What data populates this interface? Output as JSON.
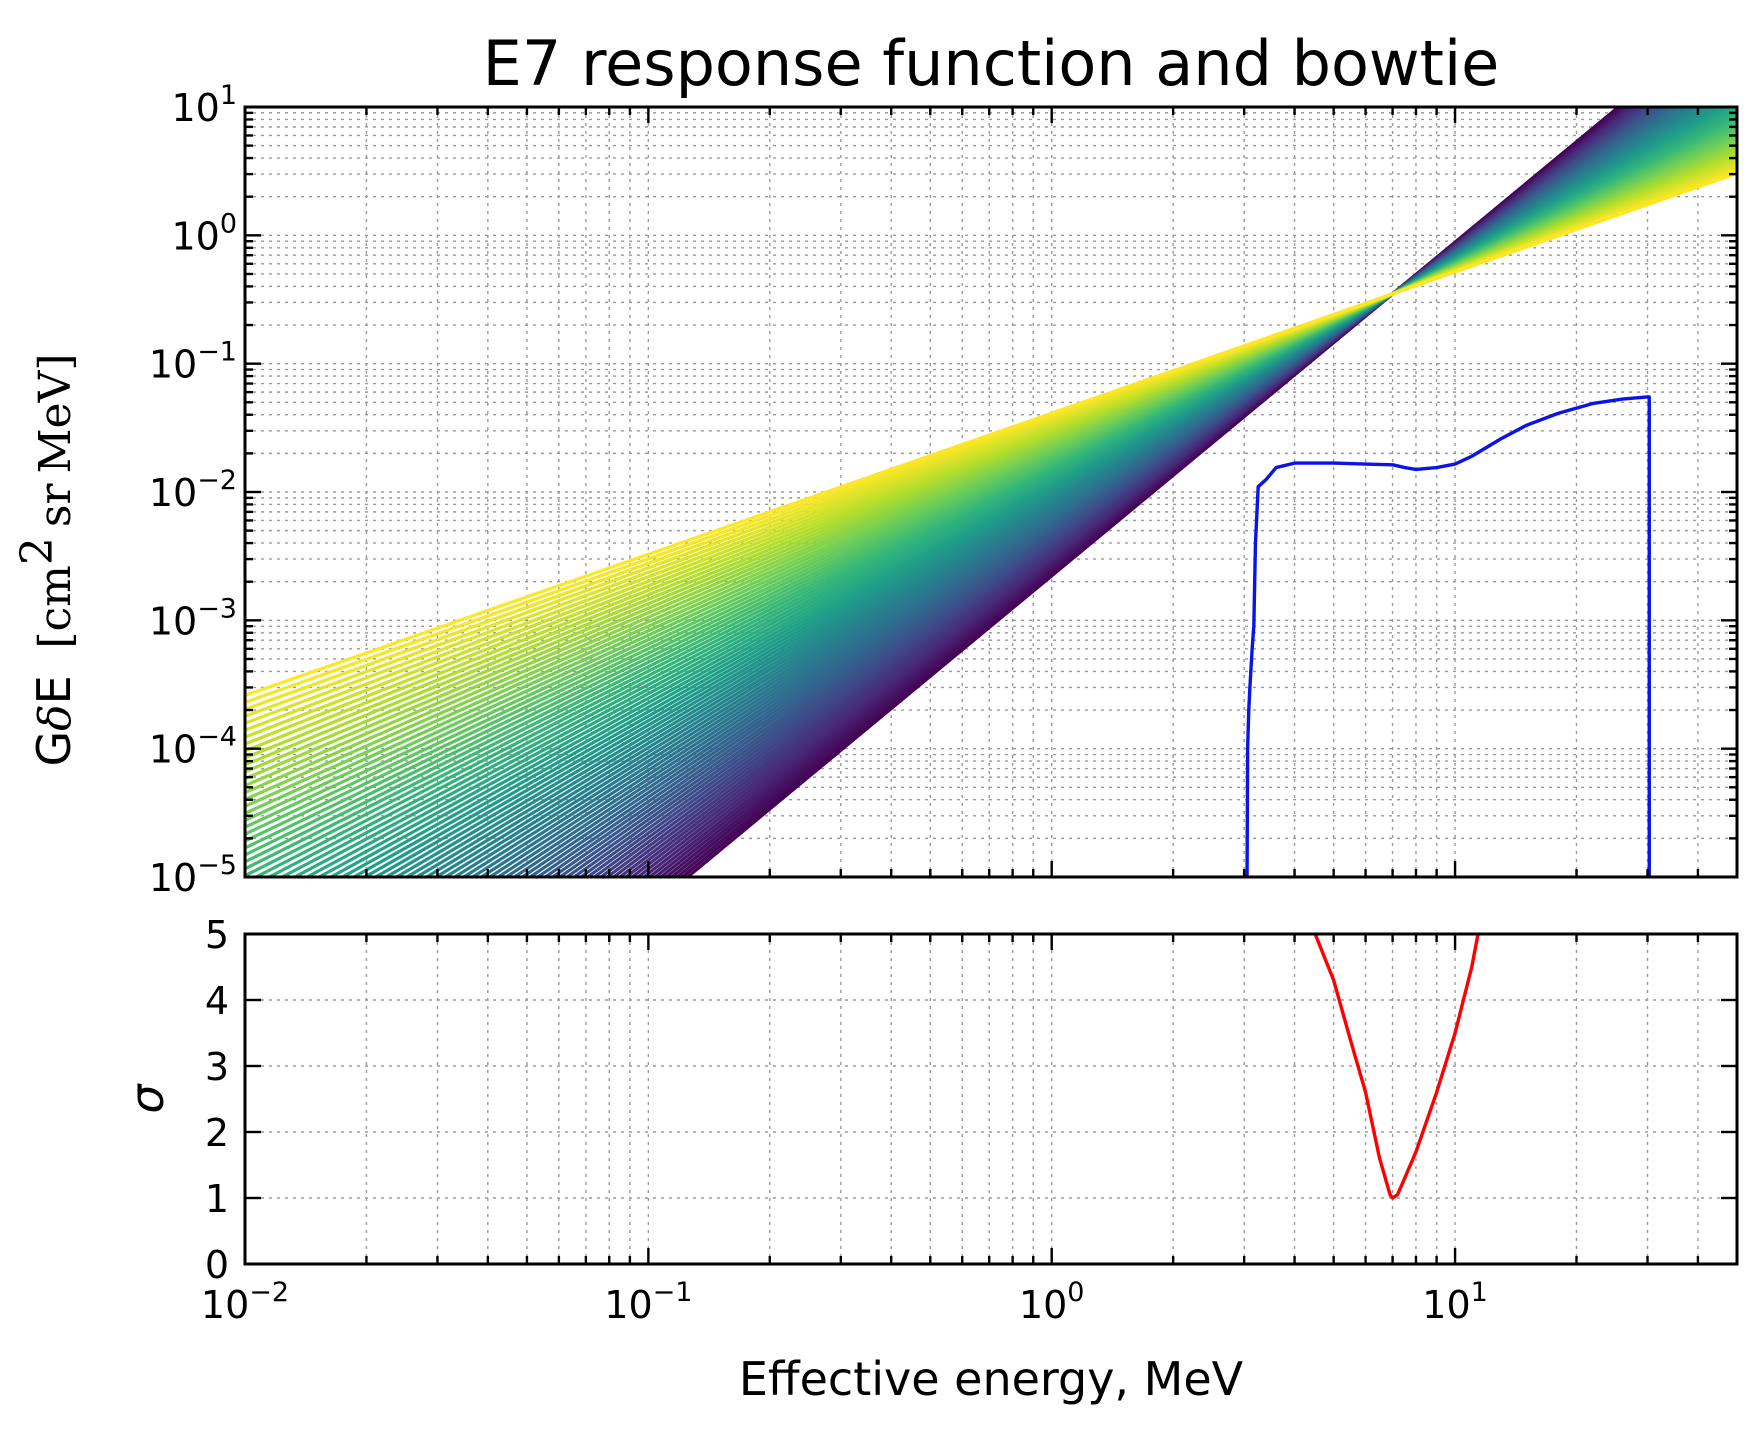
{
  "figure": {
    "title": "E7 response function and bowtie"
  },
  "chart_data": [
    {
      "type": "line",
      "panel": "top",
      "xscale": "log",
      "yscale": "log",
      "xlim": [
        0.01,
        50
      ],
      "ylim": [
        1e-05,
        10
      ],
      "grid": true,
      "ylabel": "GδE [cm² sr MeV]",
      "ylabel_parts": {
        "prefix": "G",
        "delta": "δ",
        "e": "E",
        "lb": "[",
        "unit1": "cm",
        "sup": "2",
        "unit2": "sr",
        "unit3": "MeV",
        "rb": "]"
      },
      "xticks": [
        {
          "base": "10",
          "exp": "−2",
          "value": 0.01
        },
        {
          "base": "10",
          "exp": "−1",
          "value": 0.1
        },
        {
          "base": "10",
          "exp": "0",
          "value": 1
        },
        {
          "base": "10",
          "exp": "1",
          "value": 10
        }
      ],
      "yticks": [
        {
          "base": "10",
          "exp": "1",
          "value": 10
        },
        {
          "base": "10",
          "exp": "0",
          "value": 1
        },
        {
          "base": "10",
          "exp": "−1",
          "value": 0.1
        },
        {
          "base": "10",
          "exp": "−2",
          "value": 0.01
        },
        {
          "base": "10",
          "exp": "−3",
          "value": 0.001
        },
        {
          "base": "10",
          "exp": "−4",
          "value": 0.0001
        },
        {
          "base": "10",
          "exp": "−5",
          "value": 1e-05
        }
      ],
      "bowtie": {
        "colormap": "viridis",
        "pivot_energy": 7.0,
        "pivot_value": 0.35,
        "slope_min": 1.1,
        "slope_max": 2.6,
        "line_count": 80
      },
      "series": [
        {
          "color": "#0a14e6",
          "points": [
            [
              3.05,
              1e-05
            ],
            [
              3.06,
              0.0001
            ],
            [
              3.08,
              0.0002
            ],
            [
              3.1,
              0.0003
            ],
            [
              3.14,
              0.0006
            ],
            [
              3.17,
              0.0009
            ],
            [
              3.2,
              0.004
            ],
            [
              3.25,
              0.011
            ],
            [
              3.4,
              0.0125
            ],
            [
              3.6,
              0.0155
            ],
            [
              4.0,
              0.0168
            ],
            [
              5.0,
              0.0168
            ],
            [
              6.0,
              0.0165
            ],
            [
              7.0,
              0.0163
            ],
            [
              7.5,
              0.0155
            ],
            [
              8.0,
              0.015
            ],
            [
              9.0,
              0.0155
            ],
            [
              10.0,
              0.0165
            ],
            [
              11.0,
              0.019
            ],
            [
              13.0,
              0.026
            ],
            [
              15.0,
              0.033
            ],
            [
              18.0,
              0.041
            ],
            [
              22.0,
              0.049
            ],
            [
              26.0,
              0.053
            ],
            [
              30.0,
              0.055
            ],
            [
              30.3,
              0.055
            ],
            [
              30.3,
              1e-05
            ]
          ]
        }
      ]
    },
    {
      "type": "line",
      "panel": "bottom",
      "xscale": "log",
      "xlim": [
        0.01,
        50
      ],
      "ylim": [
        0,
        5
      ],
      "grid": true,
      "xlabel": "Effective energy, MeV",
      "ylabel": "σ",
      "yticks": [
        "0",
        "1",
        "2",
        "3",
        "4",
        "5"
      ],
      "series": [
        {
          "color": "#ff0000",
          "points": [
            [
              4.5,
              5.0
            ],
            [
              5.0,
              4.3
            ],
            [
              5.5,
              3.4
            ],
            [
              6.0,
              2.6
            ],
            [
              6.5,
              1.6
            ],
            [
              6.9,
              1.05
            ],
            [
              7.0,
              1.0
            ],
            [
              7.2,
              1.05
            ],
            [
              7.5,
              1.3
            ],
            [
              8.0,
              1.7
            ],
            [
              9.0,
              2.6
            ],
            [
              10.0,
              3.5
            ],
            [
              11.0,
              4.5
            ],
            [
              11.4,
              5.0
            ]
          ]
        }
      ]
    }
  ]
}
